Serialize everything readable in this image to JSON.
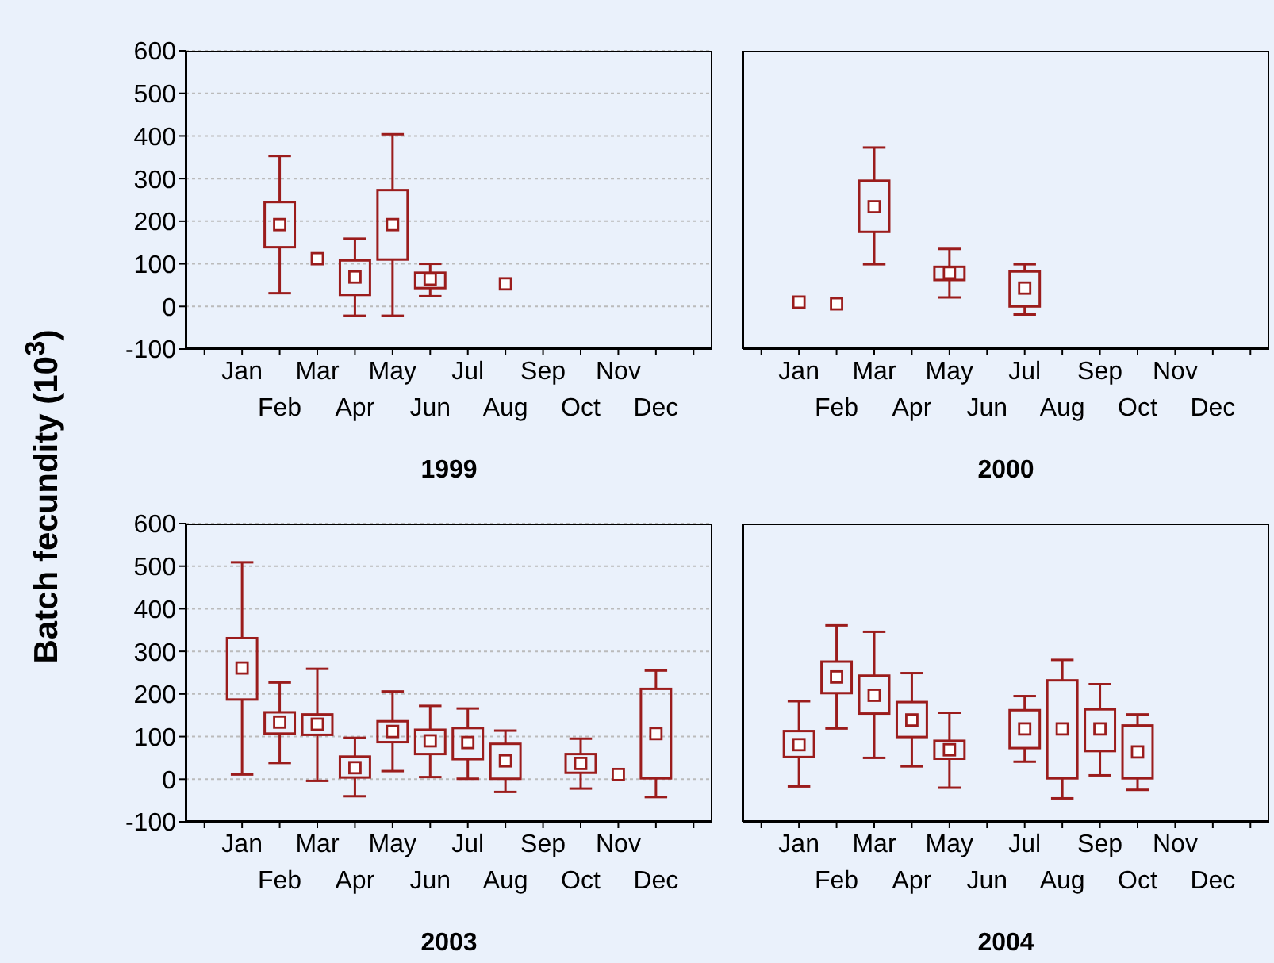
{
  "chart_data": [
    {
      "type": "box",
      "title": "1999",
      "ylabel": "Batch fecundity (10$^{3}$)",
      "color": "#9b1c1c",
      "marker": "square",
      "grid": "y",
      "ylim": [
        -100,
        600
      ],
      "yticks": [
        -100,
        0,
        100,
        200,
        300,
        400,
        500,
        600
      ],
      "categories": [
        null,
        "Jan",
        "Feb",
        "Mar",
        "Apr",
        "May",
        "Jun",
        "Jul",
        "Aug",
        "Sep",
        "Oct",
        "Nov",
        "Dec",
        null
      ],
      "boxes": [
        null,
        null,
        {
          "low": 31,
          "q1": 139,
          "median": 192,
          "q3": 245,
          "high": 353
        },
        null,
        {
          "low": -22,
          "q1": 27,
          "median": 69,
          "q3": 108,
          "high": 159
        },
        {
          "low": -22,
          "q1": 110,
          "median": 192,
          "q3": 273,
          "high": 404
        },
        {
          "low": 24,
          "q1": 43,
          "median": 64,
          "q3": 79,
          "high": 100
        },
        null,
        null,
        null,
        null,
        null,
        null,
        null
      ],
      "series": [
        {
          "type": "scatter",
          "color": "#9b1c1c",
          "x": [
            "Mar",
            "Aug"
          ],
          "values": [
            112,
            53
          ]
        }
      ]
    },
    {
      "type": "box",
      "title": "2000",
      "color": "#9b1c1c",
      "marker": "square",
      "grid": "y",
      "ylim": [
        -100,
        600
      ],
      "yticks": [
        -100,
        0,
        100,
        200,
        300,
        400,
        500,
        600
      ],
      "tick_labels": "x",
      "categories": [
        null,
        "Jan",
        "Feb",
        "Mar",
        "Apr",
        "May",
        "Jun",
        "Jul",
        "Aug",
        "Sep",
        "Oct",
        "Nov",
        "Dec",
        null
      ],
      "series": [
        {
          "type": "scatter",
          "color": "#9b1c1c",
          "x": [
            "Jan",
            "Feb"
          ],
          "values": [
            10,
            6
          ]
        }
      ],
      "boxes": [
        null,
        null,
        null,
        {
          "low": 99,
          "q1": 175,
          "median": 234,
          "q3": 295,
          "high": 373
        },
        null,
        {
          "low": 21,
          "q1": 62,
          "median": 79,
          "q3": 93,
          "high": 135
        },
        null,
        {
          "low": -19,
          "q1": 0,
          "median": 43,
          "q3": 82,
          "high": 99
        },
        null,
        null,
        null,
        null,
        null,
        null
      ]
    },
    {
      "type": "box",
      "title": "2003",
      "color": "#9b1c1c",
      "marker": "square",
      "grid": "y",
      "ylim": [
        -100,
        600
      ],
      "yticks": [
        -100,
        0,
        100,
        200,
        300,
        400,
        500,
        600
      ],
      "categories": [
        null,
        "Jan",
        "Feb",
        "Mar",
        "Apr",
        "May",
        "Jun",
        "Jul",
        "Aug",
        "Sep",
        "Oct",
        "Nov",
        "Dec",
        null
      ],
      "boxes": [
        null,
        {
          "low": 11,
          "q1": 187,
          "median": 261,
          "q3": 331,
          "high": 509
        },
        {
          "low": 38,
          "q1": 107,
          "median": 134,
          "q3": 157,
          "high": 227
        },
        {
          "low": -4,
          "q1": 104,
          "median": 129,
          "q3": 152,
          "high": 259
        },
        {
          "low": -40,
          "q1": 4,
          "median": 27,
          "q3": 53,
          "high": 97
        },
        {
          "low": 19,
          "q1": 87,
          "median": 112,
          "q3": 136,
          "high": 206
        },
        {
          "low": 5,
          "q1": 59,
          "median": 90,
          "q3": 116,
          "high": 172
        },
        {
          "low": 1,
          "q1": 47,
          "median": 86,
          "q3": 120,
          "high": 166
        },
        {
          "low": -30,
          "q1": 1,
          "median": 43,
          "q3": 83,
          "high": 114
        },
        null,
        {
          "low": -22,
          "q1": 15,
          "median": 37,
          "q3": 59,
          "high": 95
        },
        null,
        {
          "low": -42,
          "q1": 2,
          "median": 107,
          "q3": 212,
          "high": 255
        },
        null
      ],
      "series": [
        {
          "type": "scatter",
          "color": "#9b1c1c",
          "x": [
            "Nov"
          ],
          "values": [
            11
          ]
        }
      ]
    },
    {
      "type": "box",
      "title": "2004",
      "color": "#9b1c1c",
      "marker": "square",
      "grid": "y",
      "ylim": [
        -100,
        600
      ],
      "yticks": [
        -100,
        0,
        100,
        200,
        300,
        400,
        500,
        600
      ],
      "tick_labels": "x",
      "categories": [
        null,
        "Jan",
        "Feb",
        "Mar",
        "Apr",
        "May",
        "Jun",
        "Jul",
        "Aug",
        "Sep",
        "Oct",
        "Nov",
        "Dec",
        null
      ],
      "boxes": [
        null,
        {
          "low": -17,
          "q1": 52,
          "median": 81,
          "q3": 113,
          "high": 183
        },
        {
          "low": 119,
          "q1": 202,
          "median": 240,
          "q3": 276,
          "high": 361
        },
        {
          "low": 50,
          "q1": 154,
          "median": 197,
          "q3": 243,
          "high": 346
        },
        {
          "low": 30,
          "q1": 99,
          "median": 139,
          "q3": 181,
          "high": 249
        },
        {
          "low": -20,
          "q1": 48,
          "median": 69,
          "q3": 90,
          "high": 156
        },
        null,
        {
          "low": 41,
          "q1": 73,
          "median": 118,
          "q3": 162,
          "high": 195
        },
        {
          "low": -45,
          "q1": 2,
          "median": 118,
          "q3": 232,
          "high": 280
        },
        {
          "low": 9,
          "q1": 66,
          "median": 118,
          "q3": 164,
          "high": 223
        },
        {
          "low": -25,
          "q1": 2,
          "median": 64,
          "q3": 126,
          "high": 152
        },
        null,
        null,
        null
      ]
    }
  ]
}
